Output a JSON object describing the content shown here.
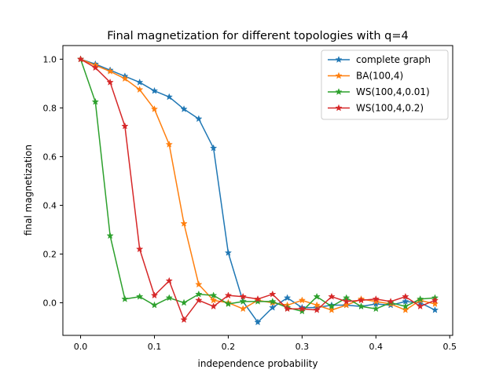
{
  "chart_data": {
    "type": "line",
    "title": "Final magnetization for different topologies with q=4",
    "xlabel": "independence probability",
    "ylabel": "final magnetization",
    "xlim": [
      -0.024,
      0.504
    ],
    "ylim": [
      -0.134,
      1.056
    ],
    "xticks": [
      0.0,
      0.1,
      0.2,
      0.3,
      0.4,
      0.5
    ],
    "xtick_labels": [
      "0.0",
      "0.1",
      "0.2",
      "0.3",
      "0.4",
      "0.5"
    ],
    "yticks": [
      0.0,
      0.2,
      0.4,
      0.6,
      0.8,
      1.0
    ],
    "ytick_labels": [
      "0.0",
      "0.2",
      "0.4",
      "0.6",
      "0.8",
      "1.0"
    ],
    "grid": false,
    "legend_position": "top-right",
    "marker": "star",
    "x": [
      0.0,
      0.02,
      0.04,
      0.06,
      0.08,
      0.1,
      0.12,
      0.14,
      0.16,
      0.18,
      0.2,
      0.22,
      0.24,
      0.26,
      0.28,
      0.3,
      0.32,
      0.34,
      0.36,
      0.38,
      0.4,
      0.42,
      0.44,
      0.46,
      0.48
    ],
    "series": [
      {
        "name": "complete graph",
        "color": "#1f77b4",
        "values": [
          1.0,
          0.98,
          0.955,
          0.93,
          0.905,
          0.87,
          0.845,
          0.795,
          0.755,
          0.635,
          0.205,
          0.005,
          -0.08,
          -0.02,
          0.02,
          -0.02,
          -0.02,
          -0.01,
          -0.01,
          -0.015,
          -0.005,
          -0.01,
          0.005,
          0.0,
          -0.03
        ]
      },
      {
        "name": "BA(100,4)",
        "color": "#ff7f0e",
        "values": [
          1.0,
          0.975,
          0.95,
          0.92,
          0.875,
          0.795,
          0.65,
          0.325,
          0.075,
          0.01,
          0.0,
          -0.025,
          0.01,
          0.0,
          -0.01,
          0.01,
          -0.01,
          -0.03,
          -0.01,
          0.015,
          0.005,
          -0.005,
          -0.03,
          0.01,
          -0.005
        ]
      },
      {
        "name": "WS(100,4,0.01)",
        "color": "#2ca02c",
        "values": [
          1.0,
          0.825,
          0.275,
          0.015,
          0.025,
          -0.01,
          0.02,
          0.0,
          0.035,
          0.03,
          -0.005,
          0.005,
          0.005,
          0.005,
          -0.02,
          -0.035,
          0.025,
          -0.015,
          0.02,
          -0.015,
          -0.025,
          0.0,
          -0.015,
          0.015,
          0.02
        ]
      },
      {
        "name": "WS(100,4,0.2)",
        "color": "#d62728",
        "values": [
          1.0,
          0.965,
          0.905,
          0.725,
          0.22,
          0.03,
          0.09,
          -0.07,
          0.01,
          -0.015,
          0.03,
          0.025,
          0.015,
          0.035,
          -0.025,
          -0.025,
          -0.03,
          0.025,
          0.005,
          0.01,
          0.015,
          0.005,
          0.025,
          -0.015,
          0.01
        ]
      }
    ]
  }
}
